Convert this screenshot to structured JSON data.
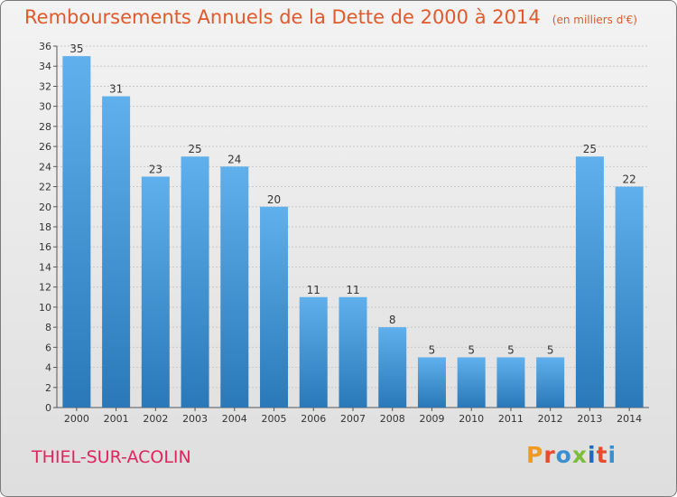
{
  "header": {
    "title": "Remboursements Annuels de la Dette de 2000 à 2014",
    "subtitle": "(en milliers d'€)"
  },
  "footer": {
    "city": "THIEL-SUR-ACOLIN",
    "logo_text": "Proxiti",
    "logo_colors": [
      "#f29a1d",
      "#e84a2b",
      "#3a8fd0",
      "#7cbd3a",
      "#1f6ac0",
      "#e84a2b",
      "#3a8fd0"
    ]
  },
  "colors": {
    "bar_light": "#5fb0ec",
    "bar_dark": "#2a78b8",
    "grid": "#c8c8c8"
  },
  "chart_data": {
    "type": "bar",
    "title": "Remboursements Annuels de la Dette de 2000 à 2014",
    "categories": [
      "2000",
      "2001",
      "2002",
      "2003",
      "2004",
      "2005",
      "2006",
      "2007",
      "2008",
      "2009",
      "2010",
      "2011",
      "2012",
      "2013",
      "2014"
    ],
    "values": [
      35,
      31,
      23,
      25,
      24,
      20,
      11,
      11,
      8,
      5,
      5,
      5,
      5,
      25,
      22
    ],
    "ylim": [
      0,
      36
    ],
    "yticks": [
      0,
      2,
      4,
      6,
      8,
      10,
      12,
      14,
      16,
      18,
      20,
      22,
      24,
      26,
      28,
      30,
      32,
      34,
      36
    ],
    "grid": true
  }
}
